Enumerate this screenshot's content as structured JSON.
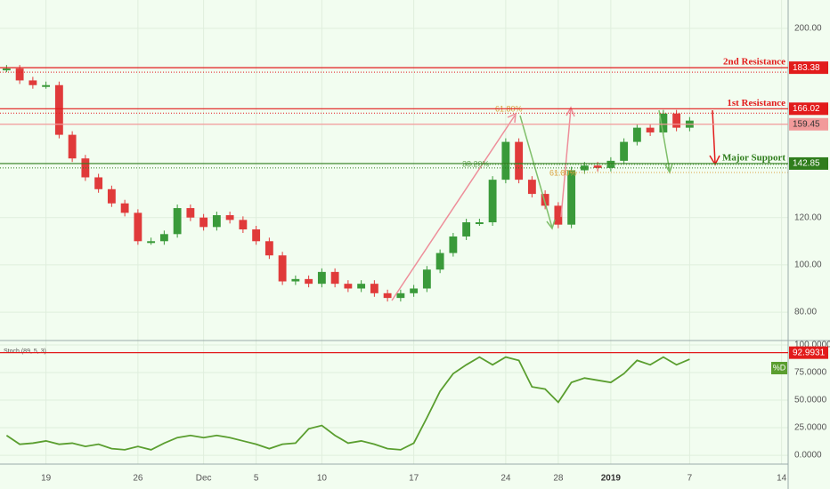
{
  "chart_data": [
    {
      "type": "candlestick",
      "values": [
        183,
        178,
        176,
        176,
        155,
        145,
        137,
        132,
        126,
        122,
        110,
        110,
        113,
        124,
        120,
        116,
        121,
        119,
        115,
        110,
        104,
        93,
        94,
        92,
        97,
        92,
        90,
        92,
        88,
        86,
        88,
        90,
        98,
        105,
        112,
        118,
        118,
        136,
        152,
        136,
        130,
        125,
        117,
        140,
        142,
        141,
        144,
        152,
        158,
        156,
        164,
        158,
        161,
        null,
        null,
        null,
        null,
        null,
        null,
        null
      ],
      "up_color": "#3a9a3a",
      "down_color": "#e03a3a",
      "ylim": [
        68,
        212
      ],
      "yticks": [
        {
          "value": 80,
          "label": "80.00"
        },
        {
          "value": 100,
          "label": "100.00"
        },
        {
          "value": 120,
          "label": "120.00"
        },
        {
          "value": 200,
          "label": "200.00"
        }
      ],
      "levels": [
        {
          "name": "2nd Resistance",
          "value": 183.38,
          "color": "#e21b1b"
        },
        {
          "name": "1st Resistance",
          "value": 166.02,
          "color": "#e21b1b"
        },
        {
          "name": "Major Support",
          "value": 142.85,
          "color": "#2f7d1c"
        },
        {
          "value": 159.45,
          "color": "#f29a9a"
        }
      ],
      "annotations": [
        "61.80%",
        "38.20%",
        "61.80%"
      ],
      "grid": true
    },
    {
      "type": "line",
      "title": "Stoch (89, 5, 3)",
      "categories": [
        null,
        null,
        null,
        "19",
        null,
        null,
        null,
        null,
        null,
        null,
        "26",
        null,
        null,
        null,
        null,
        "Dec",
        null,
        null,
        null,
        "5",
        null,
        null,
        null,
        null,
        "10",
        null,
        null,
        null,
        null,
        null,
        null,
        "17",
        null,
        null,
        null,
        null,
        null,
        null,
        "24",
        null,
        null,
        null,
        "28",
        null,
        null,
        null,
        "2019",
        null,
        null,
        null,
        null,
        null,
        "7",
        null,
        null,
        null,
        null,
        null,
        null,
        "14"
      ],
      "series": [
        {
          "name": "%D",
          "color": "#5a9e2f",
          "values": [
            18,
            10,
            11,
            13,
            10,
            11,
            8,
            10,
            6,
            5,
            8,
            5,
            11,
            16,
            18,
            16,
            18,
            16,
            13,
            10,
            6,
            10,
            11,
            24,
            27,
            18,
            11,
            13,
            10,
            6,
            5,
            11,
            34,
            58,
            74,
            82,
            89,
            82,
            89,
            86,
            62,
            60,
            48,
            66,
            70,
            68,
            66,
            74,
            86,
            82,
            89,
            82,
            87,
            null,
            null,
            null,
            null,
            null,
            null,
            null
          ]
        }
      ],
      "ylim": [
        -8,
        104
      ],
      "yticks": [
        {
          "value": 0,
          "label": "0.0000"
        },
        {
          "value": 25,
          "label": "25.0000"
        },
        {
          "value": 50,
          "label": "50.0000"
        },
        {
          "value": 75,
          "label": "75.0000"
        },
        {
          "value": 100,
          "label": "100.0000"
        }
      ],
      "levels": [
        {
          "value": 92.9931,
          "color": "#e21b1b"
        }
      ],
      "grid": true
    }
  ]
}
